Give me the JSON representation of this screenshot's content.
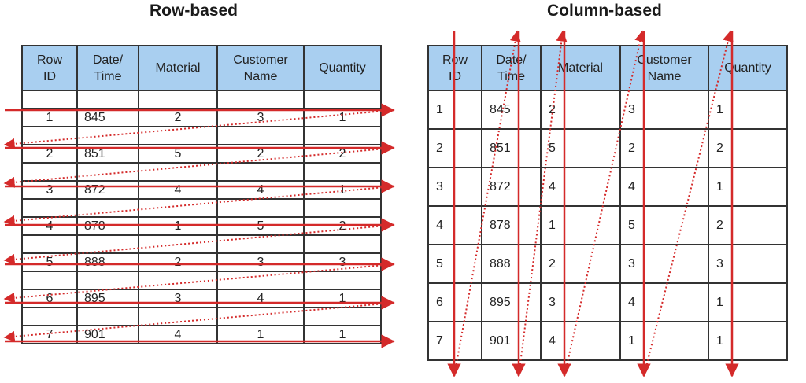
{
  "titles": {
    "left": "Row-based",
    "right": "Column-based"
  },
  "headers": [
    "Row\nID",
    "Date/\nTime",
    "Material",
    "Customer\nName",
    "Quantity"
  ],
  "rows": [
    [
      "1",
      "845",
      "2",
      "3",
      "1"
    ],
    [
      "2",
      "851",
      "5",
      "2",
      "2"
    ],
    [
      "3",
      "872",
      "4",
      "4",
      "1"
    ],
    [
      "4",
      "878",
      "1",
      "5",
      "2"
    ],
    [
      "5",
      "888",
      "2",
      "3",
      "3"
    ],
    [
      "6",
      "895",
      "3",
      "4",
      "1"
    ],
    [
      "7",
      "901",
      "4",
      "1",
      "1"
    ]
  ],
  "colors": {
    "header_fill": "#a9cff0",
    "arrow": "#d42a2a",
    "border": "#333333"
  }
}
